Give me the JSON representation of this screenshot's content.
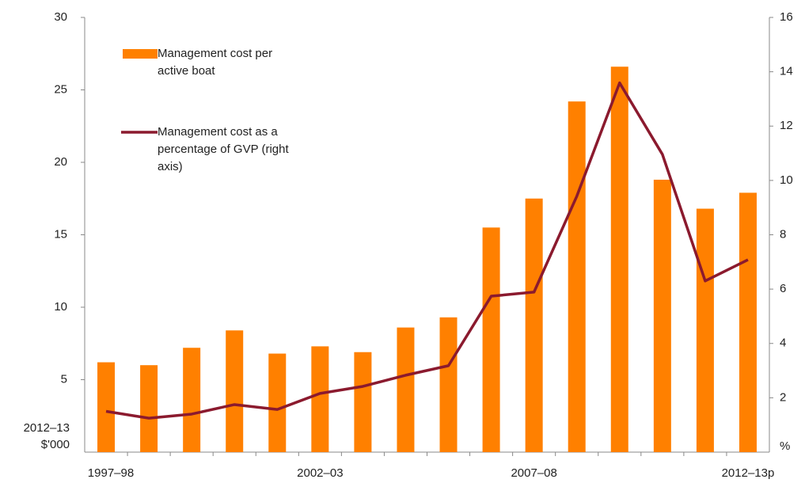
{
  "chart_data": {
    "type": "bar-line",
    "categories": [
      "1997–98",
      null,
      null,
      null,
      null,
      "2002–03",
      null,
      null,
      null,
      null,
      "2007–08",
      null,
      null,
      null,
      null,
      "2012–13p"
    ],
    "y_label": "2012–13 $'000",
    "y2_label": "%",
    "ylim": [
      0,
      30
    ],
    "yticks": [
      5,
      10,
      15,
      20,
      25,
      30
    ],
    "y2lim": [
      0,
      16
    ],
    "y2ticks": [
      2,
      4,
      6,
      8,
      10,
      12,
      14,
      16
    ],
    "grid": false,
    "legend": "top-left",
    "series": [
      {
        "name": "Management cost per active boat",
        "type": "bar",
        "color": "#ff8000",
        "values": [
          6.2,
          6.0,
          7.2,
          8.4,
          6.8,
          7.3,
          6.9,
          8.6,
          9.3,
          15.5,
          17.5,
          24.2,
          26.6,
          18.8,
          16.8,
          17.9
        ]
      },
      {
        "name": "Management cost as a percentage of GVP (right axis)",
        "type": "line",
        "axis": "y2",
        "color": "#8b1a2e",
        "values": [
          1.5,
          1.25,
          1.4,
          1.75,
          1.57,
          2.16,
          2.42,
          2.83,
          3.18,
          5.74,
          5.89,
          9.42,
          13.59,
          10.96,
          6.3,
          7.08
        ]
      }
    ]
  }
}
